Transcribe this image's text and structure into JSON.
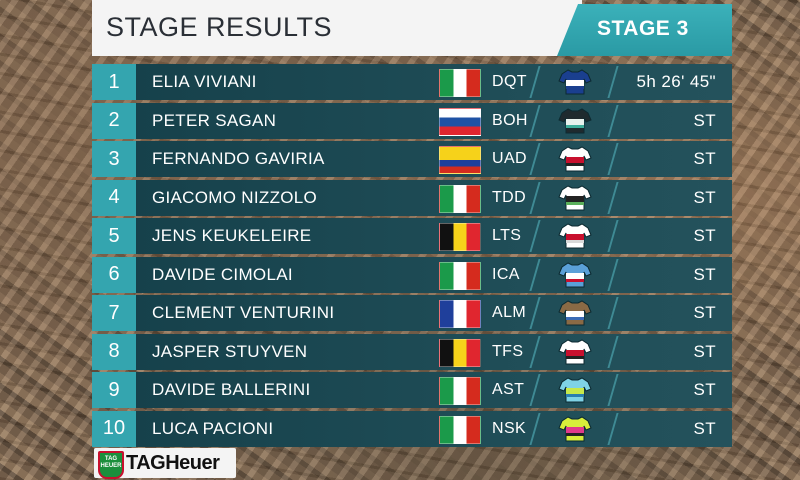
{
  "header": {
    "title": "STAGE RESULTS",
    "stage": "STAGE 3"
  },
  "results": [
    {
      "pos": "1",
      "name": "ELIA VIVIANI",
      "flag": "italy",
      "team": "DQT",
      "jersey": [
        "#1a3f8f",
        "#ffffff",
        "#1a3f8f"
      ],
      "time": "5h 26' 45\""
    },
    {
      "pos": "2",
      "name": "PETER SAGAN",
      "flag": "slovakia",
      "team": "BOH",
      "jersey": [
        "#1f2a2e",
        "#e8f2ee",
        "#3fae9c"
      ],
      "time": "ST"
    },
    {
      "pos": "3",
      "name": "FERNANDO GAVIRIA",
      "flag": "colombia",
      "team": "UAD",
      "jersey": [
        "#ffffff",
        "#c8102e",
        "#222222"
      ],
      "time": "ST"
    },
    {
      "pos": "4",
      "name": "GIACOMO NIZZOLO",
      "flag": "italy",
      "team": "TDD",
      "jersey": [
        "#ffffff",
        "#222222",
        "#5bb05b"
      ],
      "time": "ST"
    },
    {
      "pos": "5",
      "name": "JENS KEUKELEIRE",
      "flag": "belgium",
      "team": "LTS",
      "jersey": [
        "#ffffff",
        "#c8102e",
        "#d9d9d9"
      ],
      "time": "ST"
    },
    {
      "pos": "6",
      "name": "DAVIDE CIMOLAI",
      "flag": "italy",
      "team": "ICA",
      "jersey": [
        "#5aa0d8",
        "#ffffff",
        "#c8102e"
      ],
      "time": "ST"
    },
    {
      "pos": "7",
      "name": "CLEMENT VENTURINI",
      "flag": "france",
      "team": "ALM",
      "jersey": [
        "#8a6a45",
        "#ffffff",
        "#3a6bb5"
      ],
      "time": "ST"
    },
    {
      "pos": "8",
      "name": "JASPER STUYVEN",
      "flag": "belgium",
      "team": "TFS",
      "jersey": [
        "#ffffff",
        "#c8102e",
        "#222222"
      ],
      "time": "ST"
    },
    {
      "pos": "9",
      "name": "DAVIDE BALLERINI",
      "flag": "italy",
      "team": "AST",
      "jersey": [
        "#7fd3e6",
        "#c7e84a",
        "#2a7fb0"
      ],
      "time": "ST"
    },
    {
      "pos": "10",
      "name": "LUCA PACIONI",
      "flag": "italy",
      "team": "NSK",
      "jersey": [
        "#d7ef3a",
        "#e03a8c",
        "#222222"
      ],
      "time": "ST"
    }
  ],
  "sponsor": {
    "shield_text": "TAG HEUER",
    "name": "TAGHeuer"
  }
}
